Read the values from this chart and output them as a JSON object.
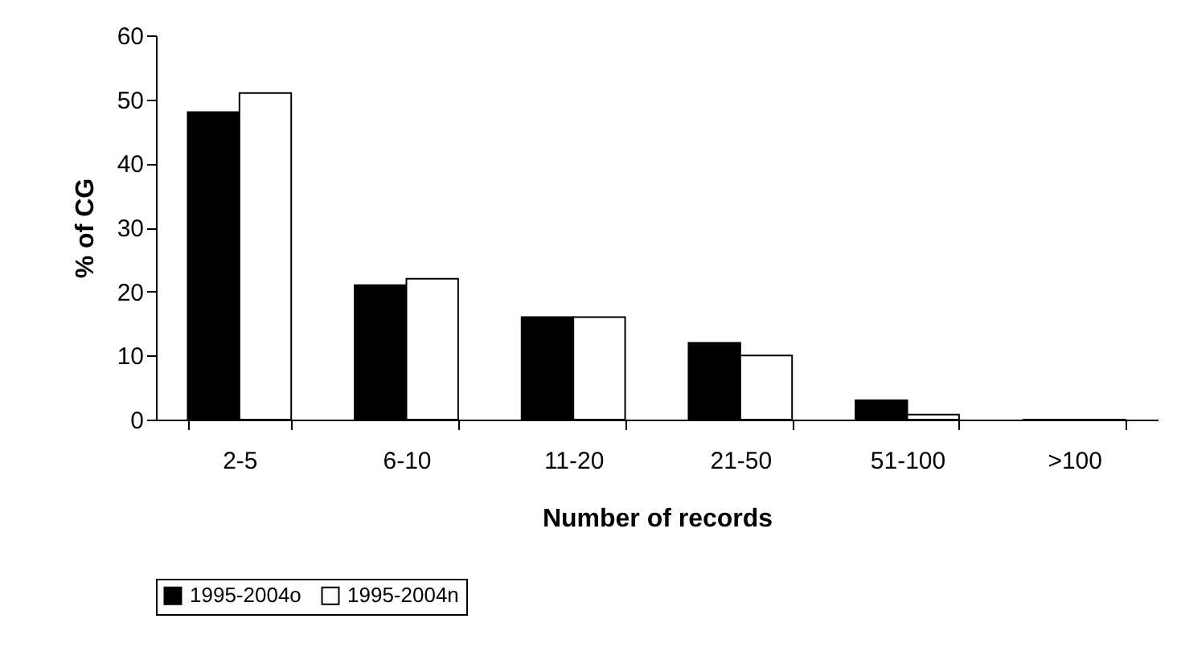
{
  "chart_data": {
    "type": "bar",
    "xlabel": "Number of records",
    "ylabel": "% of CG",
    "categories": [
      "2-5",
      "6-10",
      "11-20",
      "21-50",
      "51-100",
      ">100"
    ],
    "series": [
      {
        "name": "1995-2004o",
        "color": "#000000",
        "values": [
          48,
          21,
          16,
          12,
          3,
          0
        ]
      },
      {
        "name": "1995-2004n",
        "color": "#ffffff",
        "values": [
          51,
          22,
          16,
          10,
          0.8,
          0
        ]
      }
    ],
    "ylim": [
      0,
      60
    ],
    "yticks": [
      0,
      10,
      20,
      30,
      40,
      50,
      60
    ],
    "grid": false,
    "legend": "bottom"
  }
}
